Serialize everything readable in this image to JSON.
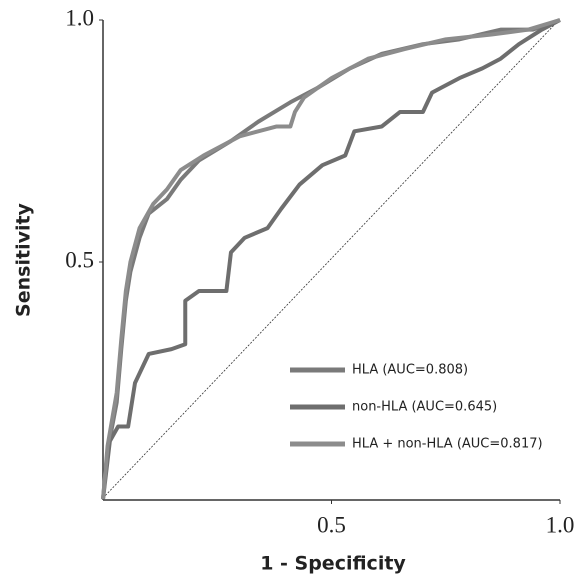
{
  "chart_data": {
    "type": "line",
    "xlabel": "1 - Specificity",
    "ylabel": "Sensitivity",
    "xlim": [
      0,
      1
    ],
    "ylim": [
      0,
      1
    ],
    "xticks": [
      0.5,
      {
        "value": 1,
        "label": "1.0"
      }
    ],
    "yticks": [
      0.5,
      {
        "value": 1,
        "label": "1.0"
      }
    ],
    "series": [
      {
        "name": "HLA (AUC=0.808)",
        "color": "#7a7a7a",
        "x": [
          0,
          0.01,
          0.03,
          0.04,
          0.05,
          0.06,
          0.08,
          0.1,
          0.14,
          0.17,
          0.21,
          0.28,
          0.34,
          0.41,
          0.47,
          0.54,
          0.61,
          0.7,
          0.78,
          0.87,
          0.94,
          1
        ],
        "values": [
          0.01,
          0.11,
          0.21,
          0.32,
          0.42,
          0.48,
          0.55,
          0.6,
          0.63,
          0.67,
          0.71,
          0.75,
          0.79,
          0.83,
          0.86,
          0.9,
          0.93,
          0.95,
          0.96,
          0.98,
          0.98,
          1
        ]
      },
      {
        "name": "non-HLA (AUC=0.645)",
        "color": "#6e6e6e",
        "x": [
          0,
          0.015,
          0.033,
          0.055,
          0.07,
          0.1,
          0.15,
          0.18,
          0.18,
          0.21,
          0.27,
          0.28,
          0.31,
          0.36,
          0.39,
          0.43,
          0.48,
          0.53,
          0.55,
          0.61,
          0.65,
          0.7,
          0.72,
          0.74,
          0.78,
          0.83,
          0.87,
          0.91,
          0.96,
          1
        ],
        "values": [
          0.01,
          0.13,
          0.16,
          0.16,
          0.25,
          0.31,
          0.32,
          0.33,
          0.42,
          0.44,
          0.44,
          0.52,
          0.55,
          0.57,
          0.61,
          0.66,
          0.7,
          0.72,
          0.77,
          0.78,
          0.81,
          0.81,
          0.85,
          0.86,
          0.88,
          0.9,
          0.92,
          0.95,
          0.98,
          1
        ]
      },
      {
        "name": "HLA + non-HLA (AUC=0.817)",
        "color": "#8c8c8c",
        "x": [
          0,
          0.01,
          0.03,
          0.04,
          0.05,
          0.06,
          0.08,
          0.11,
          0.14,
          0.17,
          0.22,
          0.3,
          0.38,
          0.41,
          0.42,
          0.44,
          0.5,
          0.58,
          0.66,
          0.75,
          0.85,
          0.93,
          1
        ],
        "values": [
          0.01,
          0.12,
          0.23,
          0.34,
          0.44,
          0.5,
          0.57,
          0.62,
          0.65,
          0.69,
          0.72,
          0.76,
          0.78,
          0.78,
          0.81,
          0.84,
          0.88,
          0.92,
          0.94,
          0.96,
          0.97,
          0.98,
          1
        ]
      }
    ]
  }
}
